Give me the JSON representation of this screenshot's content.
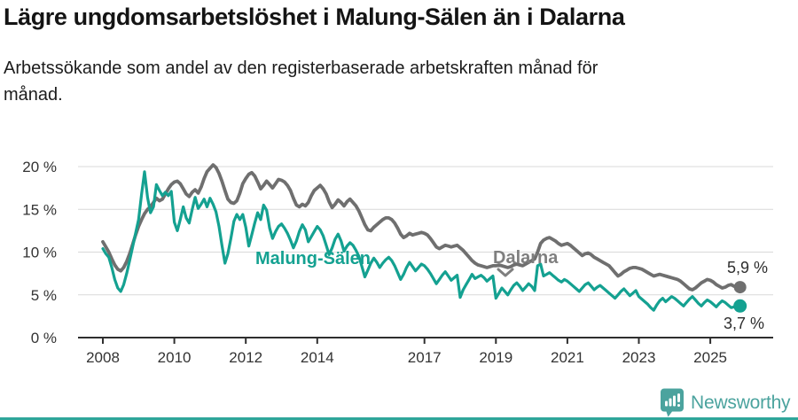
{
  "header": {
    "title": "Lägre ungdomsarbetslöshet i Malung-Sälen än i Dalarna",
    "subtitle_lines": [
      "Arbetssökande som andel av den registerbaserade arbetskraften månad för",
      "månad."
    ]
  },
  "footer": {
    "brand": "Newsworthy",
    "brand_color": "#4ba39e",
    "strip_color": "#2fa69a"
  },
  "chart_data": {
    "type": "line",
    "frequency": "monthly",
    "x_start": "2008-01",
    "x_end": "2025-11",
    "ylim": [
      0,
      21.5
    ],
    "grid": "horizontal",
    "legend_position": "inline-labels",
    "yticks": [
      {
        "label": "0 %",
        "value": 0
      },
      {
        "label": "5 %",
        "value": 5
      },
      {
        "label": "10 %",
        "value": 10
      },
      {
        "label": "15 %",
        "value": 15
      },
      {
        "label": "20 %",
        "value": 20
      }
    ],
    "xticks": [
      {
        "label": "2008",
        "year": 2008
      },
      {
        "label": "2010",
        "year": 2010
      },
      {
        "label": "2012",
        "year": 2012
      },
      {
        "label": "2014",
        "year": 2014
      },
      {
        "label": "2017",
        "year": 2017
      },
      {
        "label": "2019",
        "year": 2019
      },
      {
        "label": "2021",
        "year": 2021
      },
      {
        "label": "2023",
        "year": 2023
      },
      {
        "label": "2025",
        "year": 2025
      }
    ],
    "series": [
      {
        "name": "Dalarna",
        "color": "#6f6f6f",
        "label_color": "#7f7f7f",
        "end_label": "5,9 %",
        "end_value": 5.9,
        "values": [
          11.2,
          10.6,
          10.0,
          9.2,
          8.5,
          8.0,
          7.8,
          8.2,
          8.9,
          9.8,
          10.9,
          12.0,
          13.0,
          13.8,
          14.5,
          15.0,
          15.3,
          15.8,
          16.3,
          16.0,
          16.2,
          16.8,
          17.4,
          17.9,
          18.2,
          18.3,
          18.0,
          17.4,
          16.8,
          16.5,
          17.0,
          17.3,
          16.9,
          17.6,
          18.6,
          19.4,
          19.8,
          20.2,
          19.9,
          19.2,
          18.3,
          17.2,
          16.2,
          15.8,
          15.7,
          16.0,
          16.9,
          18.0,
          18.6,
          19.1,
          19.3,
          18.9,
          18.2,
          17.4,
          17.8,
          18.3,
          17.9,
          17.5,
          18.0,
          18.5,
          18.4,
          18.2,
          17.8,
          17.2,
          16.3,
          15.5,
          15.3,
          15.6,
          15.4,
          15.8,
          16.6,
          17.2,
          17.5,
          17.8,
          17.4,
          16.8,
          15.9,
          15.2,
          15.6,
          16.1,
          15.8,
          15.4,
          15.9,
          16.2,
          15.8,
          15.4,
          14.8,
          14.0,
          13.2,
          12.6,
          12.5,
          12.9,
          13.2,
          13.5,
          13.8,
          14.0,
          14.0,
          13.8,
          13.4,
          12.8,
          12.1,
          11.7,
          11.9,
          12.2,
          12.0,
          12.1,
          12.2,
          12.3,
          12.2,
          12.0,
          11.6,
          11.1,
          10.6,
          10.4,
          10.6,
          10.8,
          10.7,
          10.6,
          10.7,
          10.8,
          10.5,
          10.2,
          9.8,
          9.4,
          9.0,
          8.7,
          8.5,
          8.4,
          8.3,
          8.2,
          8.3,
          8.4,
          8.4,
          8.5,
          8.4,
          8.3,
          8.2,
          8.3,
          8.5,
          8.6,
          8.5,
          8.4,
          8.6,
          8.8,
          9.0,
          9.2,
          10.0,
          11.0,
          11.4,
          11.6,
          11.7,
          11.5,
          11.3,
          11.0,
          10.8,
          10.9,
          11.0,
          10.8,
          10.5,
          10.2,
          9.9,
          9.6,
          9.8,
          9.9,
          9.7,
          9.4,
          9.2,
          9.0,
          8.8,
          8.6,
          8.4,
          8.0,
          7.6,
          7.2,
          7.4,
          7.7,
          7.9,
          8.1,
          8.2,
          8.2,
          8.1,
          8.0,
          7.8,
          7.6,
          7.4,
          7.2,
          7.3,
          7.4,
          7.3,
          7.2,
          7.1,
          7.0,
          6.9,
          6.8,
          6.6,
          6.3,
          6.0,
          5.7,
          5.6,
          5.8,
          6.1,
          6.4,
          6.6,
          6.8,
          6.7,
          6.5,
          6.2,
          6.0,
          5.8,
          5.9,
          6.1,
          6.2,
          6.0,
          5.9,
          5.9
        ]
      },
      {
        "name": "Malung-Sälen",
        "color": "#14a191",
        "label_color": "#14a191",
        "end_label": "3,7 %",
        "end_value": 3.7,
        "values": [
          10.4,
          9.8,
          9.4,
          8.2,
          6.8,
          5.8,
          5.4,
          6.2,
          7.5,
          9.0,
          10.6,
          12.2,
          13.8,
          16.8,
          19.4,
          16.4,
          14.6,
          15.3,
          17.9,
          17.2,
          16.6,
          17.0,
          16.6,
          17.1,
          13.5,
          12.5,
          13.8,
          15.3,
          14.0,
          13.4,
          15.0,
          16.4,
          15.1,
          15.6,
          16.2,
          15.3,
          16.3,
          15.6,
          14.7,
          13.0,
          10.8,
          8.7,
          9.8,
          11.6,
          13.6,
          14.4,
          13.8,
          14.4,
          12.9,
          10.7,
          12.0,
          13.4,
          14.6,
          13.8,
          15.5,
          14.9,
          12.8,
          11.6,
          12.4,
          13.0,
          13.3,
          12.8,
          12.2,
          11.4,
          10.5,
          11.3,
          12.4,
          13.2,
          12.6,
          11.2,
          11.8,
          12.4,
          13.0,
          12.6,
          11.9,
          10.8,
          9.7,
          10.5,
          11.5,
          12.1,
          11.3,
          10.1,
          10.7,
          11.1,
          10.8,
          10.2,
          9.5,
          8.3,
          7.1,
          7.9,
          8.7,
          9.3,
          8.8,
          8.2,
          8.7,
          9.1,
          9.4,
          9.0,
          8.4,
          7.6,
          6.8,
          7.4,
          8.2,
          8.8,
          8.3,
          7.8,
          8.2,
          8.6,
          8.4,
          8.0,
          7.5,
          6.9,
          6.3,
          6.8,
          7.3,
          7.7,
          7.2,
          6.7,
          7.0,
          7.3,
          4.7,
          5.6,
          6.2,
          6.8,
          7.4,
          6.9,
          7.1,
          7.3,
          7.0,
          6.6,
          6.9,
          7.2,
          4.6,
          5.2,
          5.8,
          5.4,
          5.0,
          5.6,
          6.1,
          6.4,
          6.0,
          5.5,
          5.9,
          6.3,
          6.0,
          5.5,
          8.4,
          8.6,
          7.2,
          7.4,
          7.6,
          7.3,
          7.0,
          6.7,
          6.5,
          6.8,
          6.6,
          6.3,
          6.0,
          5.7,
          5.4,
          5.8,
          6.2,
          6.4,
          6.0,
          5.6,
          5.9,
          6.1,
          5.8,
          5.5,
          5.2,
          4.9,
          4.6,
          5.0,
          5.4,
          5.7,
          5.3,
          4.9,
          5.2,
          5.5,
          4.8,
          4.5,
          4.2,
          3.9,
          3.5,
          3.2,
          3.8,
          4.3,
          4.6,
          4.2,
          4.5,
          4.8,
          4.6,
          4.3,
          4.0,
          3.7,
          4.1,
          4.5,
          4.8,
          4.4,
          4.0,
          3.7,
          4.1,
          4.4,
          4.2,
          3.9,
          3.6,
          4.0,
          4.3,
          4.1,
          3.8,
          3.5,
          3.6,
          3.6,
          3.7
        ]
      }
    ],
    "annotations": [
      {
        "text": "Dalarna",
        "type": "series-label",
        "arrow": "chevron-down"
      },
      {
        "text": "Malung-Sälen",
        "type": "series-label"
      },
      {
        "text": "5,9 %",
        "type": "end-value-label"
      },
      {
        "text": "3,7 %",
        "type": "end-value-label"
      }
    ]
  }
}
